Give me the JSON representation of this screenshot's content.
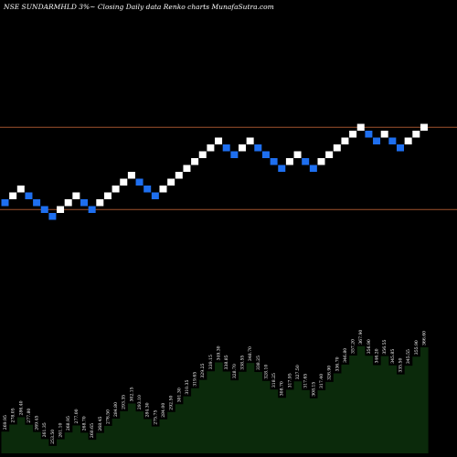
{
  "title": "NSE SUNDARMHLD 3%~  Closing Daily data  Renko  charts MunafaSutra.com",
  "colors": {
    "background": "#000000",
    "up_brick": "#ffffff",
    "down_brick": "#1e6ff0",
    "reference_line": "#a0522d",
    "area_fill": "#0b2a0b",
    "label_text": "#ffffff"
  },
  "chart_data": {
    "type": "renko",
    "brick_percent": 3,
    "bricks": [
      "down",
      "up",
      "up",
      "down",
      "down",
      "down",
      "down",
      "up",
      "up",
      "up",
      "down",
      "down",
      "up",
      "up",
      "up",
      "up",
      "up",
      "down",
      "down",
      "down",
      "up",
      "up",
      "up",
      "up",
      "up",
      "up",
      "up",
      "up",
      "down",
      "down",
      "up",
      "up",
      "down",
      "down",
      "down",
      "down",
      "up",
      "up",
      "down",
      "down",
      "up",
      "up",
      "up",
      "up",
      "up",
      "up",
      "down",
      "down",
      "up",
      "down",
      "down",
      "up",
      "up",
      "up"
    ],
    "brick_levels": [
      0,
      1,
      2,
      1,
      0,
      -1,
      -2,
      -1,
      0,
      1,
      0,
      -1,
      0,
      1,
      2,
      3,
      4,
      3,
      2,
      1,
      2,
      3,
      4,
      5,
      6,
      7,
      8,
      9,
      8,
      7,
      8,
      9,
      8,
      7,
      6,
      5,
      6,
      7,
      6,
      5,
      6,
      7,
      8,
      9,
      10,
      11,
      10,
      9,
      10,
      9,
      8,
      9,
      10,
      11
    ],
    "reference_levels": [
      11.5,
      -0.5
    ],
    "closing_labels": [
      "269.95",
      "278.05",
      "286.40",
      "277.80",
      "269.45",
      "261.35",
      "253.50",
      "261.10",
      "268.95",
      "277.00",
      "268.70",
      "260.65",
      "268.45",
      "276.50",
      "284.80",
      "293.35",
      "302.15",
      "293.10",
      "284.30",
      "275.75",
      "284.00",
      "292.50",
      "301.30",
      "310.35",
      "319.65",
      "329.25",
      "339.15",
      "349.30",
      "338.85",
      "328.70",
      "338.55",
      "348.70",
      "338.25",
      "328.10",
      "318.25",
      "308.70",
      "317.95",
      "327.50",
      "317.65",
      "308.15",
      "317.40",
      "326.90",
      "336.70",
      "346.80",
      "357.20",
      "367.90",
      "356.90",
      "346.20",
      "356.55",
      "345.85",
      "335.50",
      "345.55",
      "355.90",
      "366.60"
    ],
    "closing_range": [
      245,
      375
    ]
  }
}
